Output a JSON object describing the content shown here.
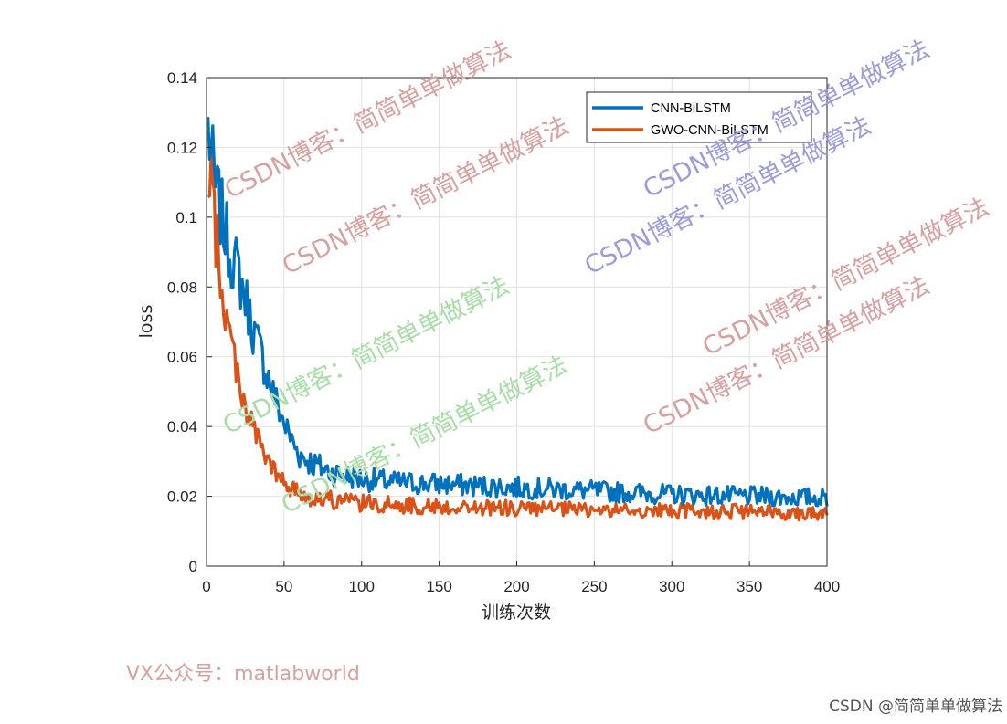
{
  "chart_data": {
    "type": "line",
    "xlabel": "训练次数",
    "ylabel": "loss",
    "xlim": [
      0,
      400
    ],
    "ylim": [
      0,
      0.14
    ],
    "xticks": [
      "0",
      "50",
      "100",
      "150",
      "200",
      "250",
      "300",
      "350",
      "400"
    ],
    "yticks": [
      "0",
      "0.02",
      "0.04",
      "0.06",
      "0.08",
      "0.1",
      "0.12",
      "0.14"
    ],
    "grid": true,
    "legend_position": "top-right",
    "series": [
      {
        "name": "CNN-BiLSTM",
        "color": "#0072BD",
        "x": [
          1,
          5,
          10,
          15,
          20,
          25,
          30,
          35,
          40,
          45,
          50,
          55,
          60,
          70,
          80,
          90,
          100,
          120,
          150,
          200,
          250,
          300,
          350,
          400
        ],
        "y": [
          0.126,
          0.11,
          0.1,
          0.09,
          0.085,
          0.077,
          0.068,
          0.061,
          0.054,
          0.047,
          0.041,
          0.036,
          0.032,
          0.029,
          0.027,
          0.026,
          0.025,
          0.024,
          0.0235,
          0.0225,
          0.0215,
          0.0205,
          0.02,
          0.0195
        ]
      },
      {
        "name": "GWO-CNN-BiLSTM",
        "color": "#D95319",
        "x": [
          1,
          3,
          5,
          10,
          15,
          20,
          25,
          30,
          35,
          40,
          45,
          50,
          55,
          60,
          70,
          80,
          90,
          100,
          120,
          150,
          200,
          250,
          300,
          350,
          400
        ],
        "y": [
          0.1,
          0.11,
          0.1,
          0.078,
          0.066,
          0.056,
          0.046,
          0.04,
          0.034,
          0.03,
          0.026,
          0.024,
          0.022,
          0.021,
          0.0195,
          0.019,
          0.0185,
          0.018,
          0.0175,
          0.017,
          0.0165,
          0.016,
          0.0158,
          0.0155,
          0.0152
        ]
      }
    ]
  },
  "watermarks": [
    {
      "text": "CSDN博客：简简单单做算法",
      "color": "#D9A0A0"
    },
    {
      "text": "CSDN博客：简简单单做算法",
      "color": "#D9A0A0"
    },
    {
      "text": "CSDN博客：简简单单做算法",
      "color": "#9C9CDD"
    },
    {
      "text": "CSDN博客：简简单单做算法",
      "color": "#9C9CDD"
    },
    {
      "text": "CSDN博客：简简单单做算法",
      "color": "#A8DDA8"
    },
    {
      "text": "CSDN博客：简简单单做算法",
      "color": "#A8DDA8"
    },
    {
      "text": "CSDN博客：简简单单做算法",
      "color": "#D9A0A0"
    },
    {
      "text": "CSDN博客：简简单单做算法",
      "color": "#D9A0A0"
    }
  ],
  "footer": {
    "left_text": "VX公众号：matlabworld",
    "left_color": "#D9A0A0",
    "right_text": "CSDN @简简单单做算法"
  }
}
